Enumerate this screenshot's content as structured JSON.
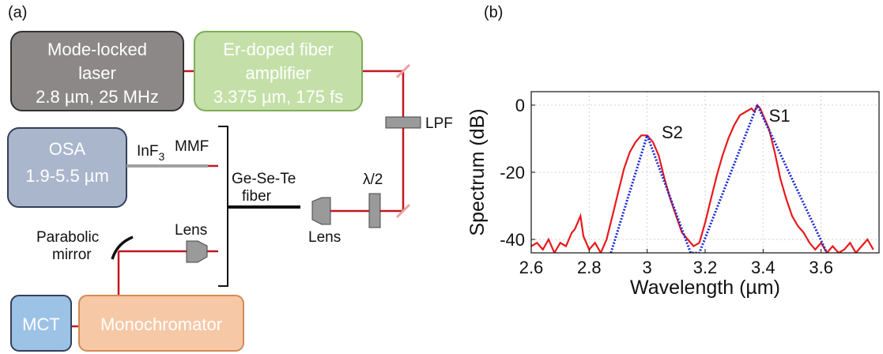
{
  "panel_a": {
    "label": "(a)",
    "boxes": {
      "laser": {
        "lines": [
          "Mode-locked",
          "laser",
          "2.8 µm, 25 MHz"
        ],
        "fill": "#8c8888",
        "stroke": "#333333"
      },
      "edfa": {
        "lines": [
          "Er-doped fiber",
          "amplifier",
          "3.375 µm, 175 fs"
        ],
        "fill": "#c4e0a8",
        "stroke": "#7eae58"
      },
      "osa": {
        "lines": [
          "OSA",
          "1.9-5.5 µm"
        ],
        "fill": "#a9b6cc",
        "stroke": "#33405a"
      },
      "mct": {
        "lines": [
          "MCT"
        ],
        "fill": "#9cc2e6",
        "stroke": "#33405a"
      },
      "mono": {
        "lines": [
          "Monochromator"
        ],
        "fill": "#f6c8a6",
        "stroke": "#d48a55"
      }
    },
    "labels": {
      "lpf": "LPF",
      "half_wave": "λ/2",
      "inf3": "InF",
      "inf3_sub": "3",
      "mmf": "MMF",
      "fiber": [
        "Ge-Se-Te",
        "fiber"
      ],
      "lens_fiber": "Lens",
      "lens_mirror": "Lens",
      "mirror": [
        "Parabolic",
        "mirror"
      ]
    },
    "colors": {
      "beam": "#c0181f",
      "optic": "#9a9a9a",
      "mirror_spot": "#f0a0a0",
      "fiber": "#111111",
      "mmf": "#a0a0a0"
    }
  },
  "panel_b": {
    "label": "(b)",
    "chart_data": {
      "type": "line",
      "xlabel": "Wavelength (µm)",
      "ylabel": "Spectrum (dB)",
      "xlim": [
        2.6,
        3.8
      ],
      "ylim": [
        -44,
        4
      ],
      "xticks": [
        2.6,
        2.8,
        3.0,
        3.2,
        3.4,
        3.6
      ],
      "xtick_labels": [
        "2.6",
        "2.8",
        "3",
        "3.2",
        "3.4",
        "3.6"
      ],
      "yticks": [
        0,
        -20,
        -40
      ],
      "ytick_labels": [
        "0",
        "-20",
        "-40"
      ],
      "grid": true,
      "annotations": [
        {
          "text": "S2",
          "x": 3.05,
          "y": -8
        },
        {
          "text": "S1",
          "x": 3.42,
          "y": -3
        }
      ],
      "series": [
        {
          "style": "solid",
          "color": "#e8191c",
          "x": [
            2.6,
            2.62,
            2.64,
            2.66,
            2.68,
            2.7,
            2.72,
            2.74,
            2.75,
            2.76,
            2.77,
            2.78,
            2.8,
            2.82,
            2.84,
            2.86,
            2.88,
            2.9,
            2.92,
            2.94,
            2.96,
            2.98,
            3.0,
            3.02,
            3.04,
            3.06,
            3.08,
            3.1,
            3.12,
            3.14,
            3.16,
            3.18,
            3.2,
            3.22,
            3.24,
            3.26,
            3.28,
            3.3,
            3.32,
            3.34,
            3.36,
            3.37,
            3.38,
            3.39,
            3.4,
            3.42,
            3.44,
            3.46,
            3.48,
            3.5,
            3.52,
            3.54,
            3.56,
            3.58,
            3.6,
            3.62,
            3.64,
            3.66,
            3.68,
            3.7,
            3.72,
            3.74,
            3.76,
            3.78
          ],
          "y": [
            -42,
            -41,
            -43,
            -40,
            -44,
            -41,
            -42,
            -38,
            -37,
            -35,
            -33,
            -39,
            -43,
            -41,
            -44,
            -40,
            -33,
            -26,
            -19,
            -14,
            -11,
            -9,
            -9,
            -11,
            -15,
            -22,
            -28,
            -33,
            -38,
            -40,
            -42,
            -41,
            -35,
            -28,
            -21,
            -15,
            -10,
            -6,
            -3,
            -2,
            -1,
            -2,
            0,
            -1,
            -3,
            -7,
            -14,
            -22,
            -28,
            -33,
            -36,
            -38,
            -41,
            -43,
            -41,
            -44,
            -42,
            -44,
            -43,
            -41,
            -44,
            -42,
            -40,
            -43
          ]
        },
        {
          "style": "dotted",
          "color": "#1d2bd6",
          "x": [
            2.875,
            3.0,
            3.15,
            3.18,
            3.38,
            3.62
          ],
          "y": [
            -44,
            -9,
            -44,
            -44,
            0,
            -44
          ]
        }
      ]
    }
  }
}
